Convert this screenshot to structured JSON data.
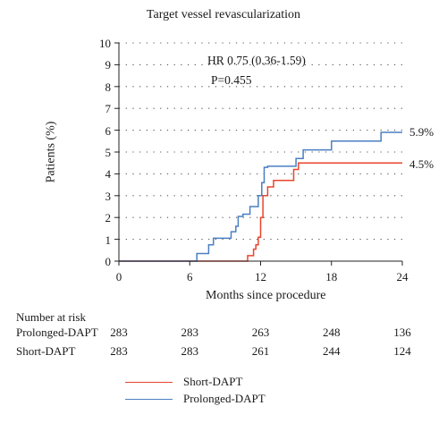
{
  "chart_data": {
    "type": "line",
    "title": "Target vessel revascularization",
    "xlabel": "Months since procedure",
    "ylabel": "Patients (%)",
    "xlim": [
      0,
      24
    ],
    "ylim": [
      0,
      10
    ],
    "xticks": [
      0,
      6,
      12,
      18,
      24
    ],
    "yticks": [
      0,
      1,
      2,
      3,
      4,
      5,
      6,
      7,
      8,
      9,
      10
    ],
    "grid": "horizontal dotted",
    "step": true,
    "series": [
      {
        "name": "Short-DAPT",
        "color": "#e8452c",
        "x": [
          0,
          10.9,
          11.4,
          11.6,
          11.8,
          12.0,
          12.2,
          12.6,
          13.1,
          14.8,
          15.2,
          24
        ],
        "y": [
          0,
          0.25,
          0.55,
          0.75,
          1.1,
          2.0,
          3.0,
          3.4,
          3.7,
          4.2,
          4.5,
          4.5
        ],
        "end_label": "4.5%"
      },
      {
        "name": "Prolonged-DAPT",
        "color": "#4a7fc1",
        "x": [
          0,
          6.6,
          7.6,
          8.0,
          9.5,
          9.9,
          10.1,
          10.5,
          11.1,
          11.8,
          12.1,
          12.3,
          12.6,
          15.0,
          15.6,
          16.6,
          18.0,
          22.2,
          24
        ],
        "y": [
          0,
          0.35,
          0.75,
          1.05,
          1.35,
          1.6,
          2.05,
          2.15,
          2.5,
          3.0,
          3.6,
          4.3,
          4.35,
          4.7,
          5.1,
          5.1,
          5.5,
          5.9,
          5.9
        ],
        "end_label": "5.9%"
      }
    ],
    "annotations": [
      "HR 0.75 (0.36-1.59)",
      "P=0.455"
    ],
    "legend": {
      "placement": "bottom",
      "entries": [
        "Short-DAPT",
        "Prolonged-DAPT"
      ]
    },
    "risk_table": {
      "title": "Number at risk",
      "rows": [
        {
          "label": "Prolonged-DAPT",
          "values": [
            283,
            283,
            263,
            248,
            136
          ]
        },
        {
          "label": "Short-DAPT",
          "values": [
            283,
            283,
            261,
            244,
            124
          ]
        }
      ]
    }
  }
}
